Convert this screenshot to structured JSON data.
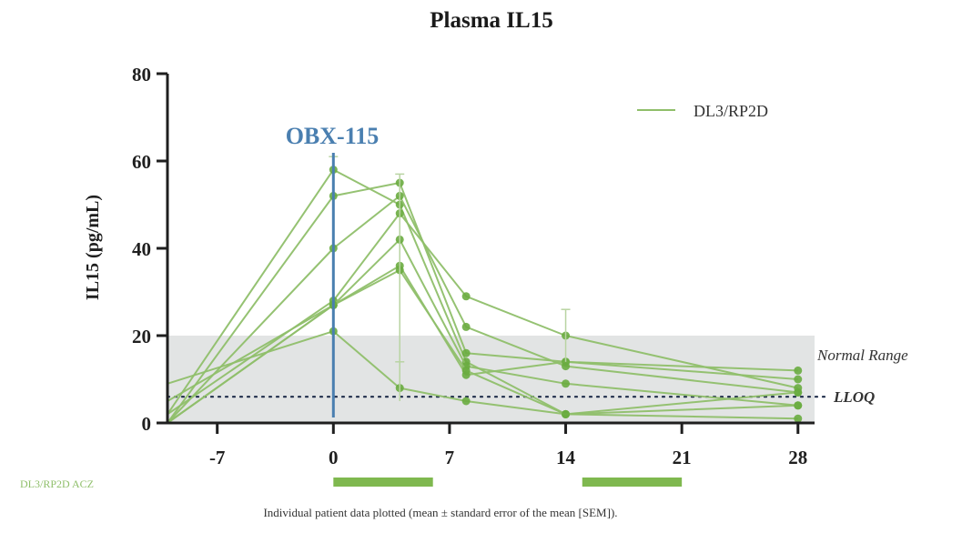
{
  "chart_data": {
    "type": "line",
    "title": "Plasma IL15",
    "ylabel": "IL15 (pg/mL)",
    "xlabel": "",
    "xlim": [
      -10,
      29
    ],
    "ylim": [
      0,
      80
    ],
    "x_ticks": [
      -7,
      0,
      7,
      14,
      21,
      28
    ],
    "y_ticks": [
      0,
      20,
      40,
      60,
      80
    ],
    "grid": false,
    "legend": {
      "position": "top-right",
      "entries": [
        {
          "label": "DL3/RP2D",
          "color": "#8fbf6a"
        }
      ]
    },
    "series": [
      {
        "x": [
          -10,
          0,
          4,
          8,
          14,
          28
        ],
        "y": [
          2,
          58,
          50,
          14,
          2,
          4
        ]
      },
      {
        "x": [
          -10,
          0,
          4,
          8,
          14,
          28
        ],
        "y": [
          0,
          52,
          55,
          16,
          14,
          10
        ]
      },
      {
        "x": [
          -10,
          0,
          4,
          8,
          14,
          28
        ],
        "y": [
          0,
          40,
          52,
          22,
          13,
          7
        ]
      },
      {
        "x": [
          -10,
          0,
          4,
          8,
          14,
          28
        ],
        "y": [
          2,
          28,
          48,
          29,
          20,
          8
        ]
      },
      {
        "x": [
          -10,
          0,
          4,
          8,
          14,
          28
        ],
        "y": [
          0,
          27,
          42,
          13,
          9,
          4
        ]
      },
      {
        "x": [
          -10,
          0,
          4,
          8,
          14,
          28
        ],
        "y": [
          0,
          27,
          36,
          11,
          14,
          12
        ]
      },
      {
        "x": [
          -10,
          0,
          4,
          8,
          14,
          28
        ],
        "y": [
          5,
          27,
          35,
          12,
          2,
          1
        ]
      },
      {
        "x": [
          -10,
          0,
          4,
          8,
          14,
          28
        ],
        "y": [
          9,
          21,
          8,
          5,
          2,
          7
        ]
      }
    ],
    "error_bars": [
      {
        "x": 0,
        "low": 2,
        "high": 61
      },
      {
        "x": 4,
        "low": 7,
        "high": 57
      },
      {
        "x": 4,
        "low": 5,
        "high": 14
      },
      {
        "x": 14,
        "low": 14,
        "high": 26
      }
    ],
    "normal_range": {
      "low": 0,
      "high": 20,
      "label": "Normal Range"
    },
    "lloq": {
      "value": 6,
      "label": "LLOQ"
    },
    "annotation": {
      "text": "OBX-115",
      "x": 0,
      "color": "#4a7fb0"
    },
    "regimen": {
      "label": "DL3/RP2D ACZ",
      "bars": [
        [
          0,
          6
        ],
        [
          15,
          21
        ]
      ]
    },
    "colors": {
      "series": "#8fbf6a",
      "marker": "#6aac40",
      "normal_range": "#e2e4e4",
      "annotation": "#4a7fb0"
    }
  },
  "footnote": "Individual patient data plotted (mean ± standard error of the mean [SEM])."
}
